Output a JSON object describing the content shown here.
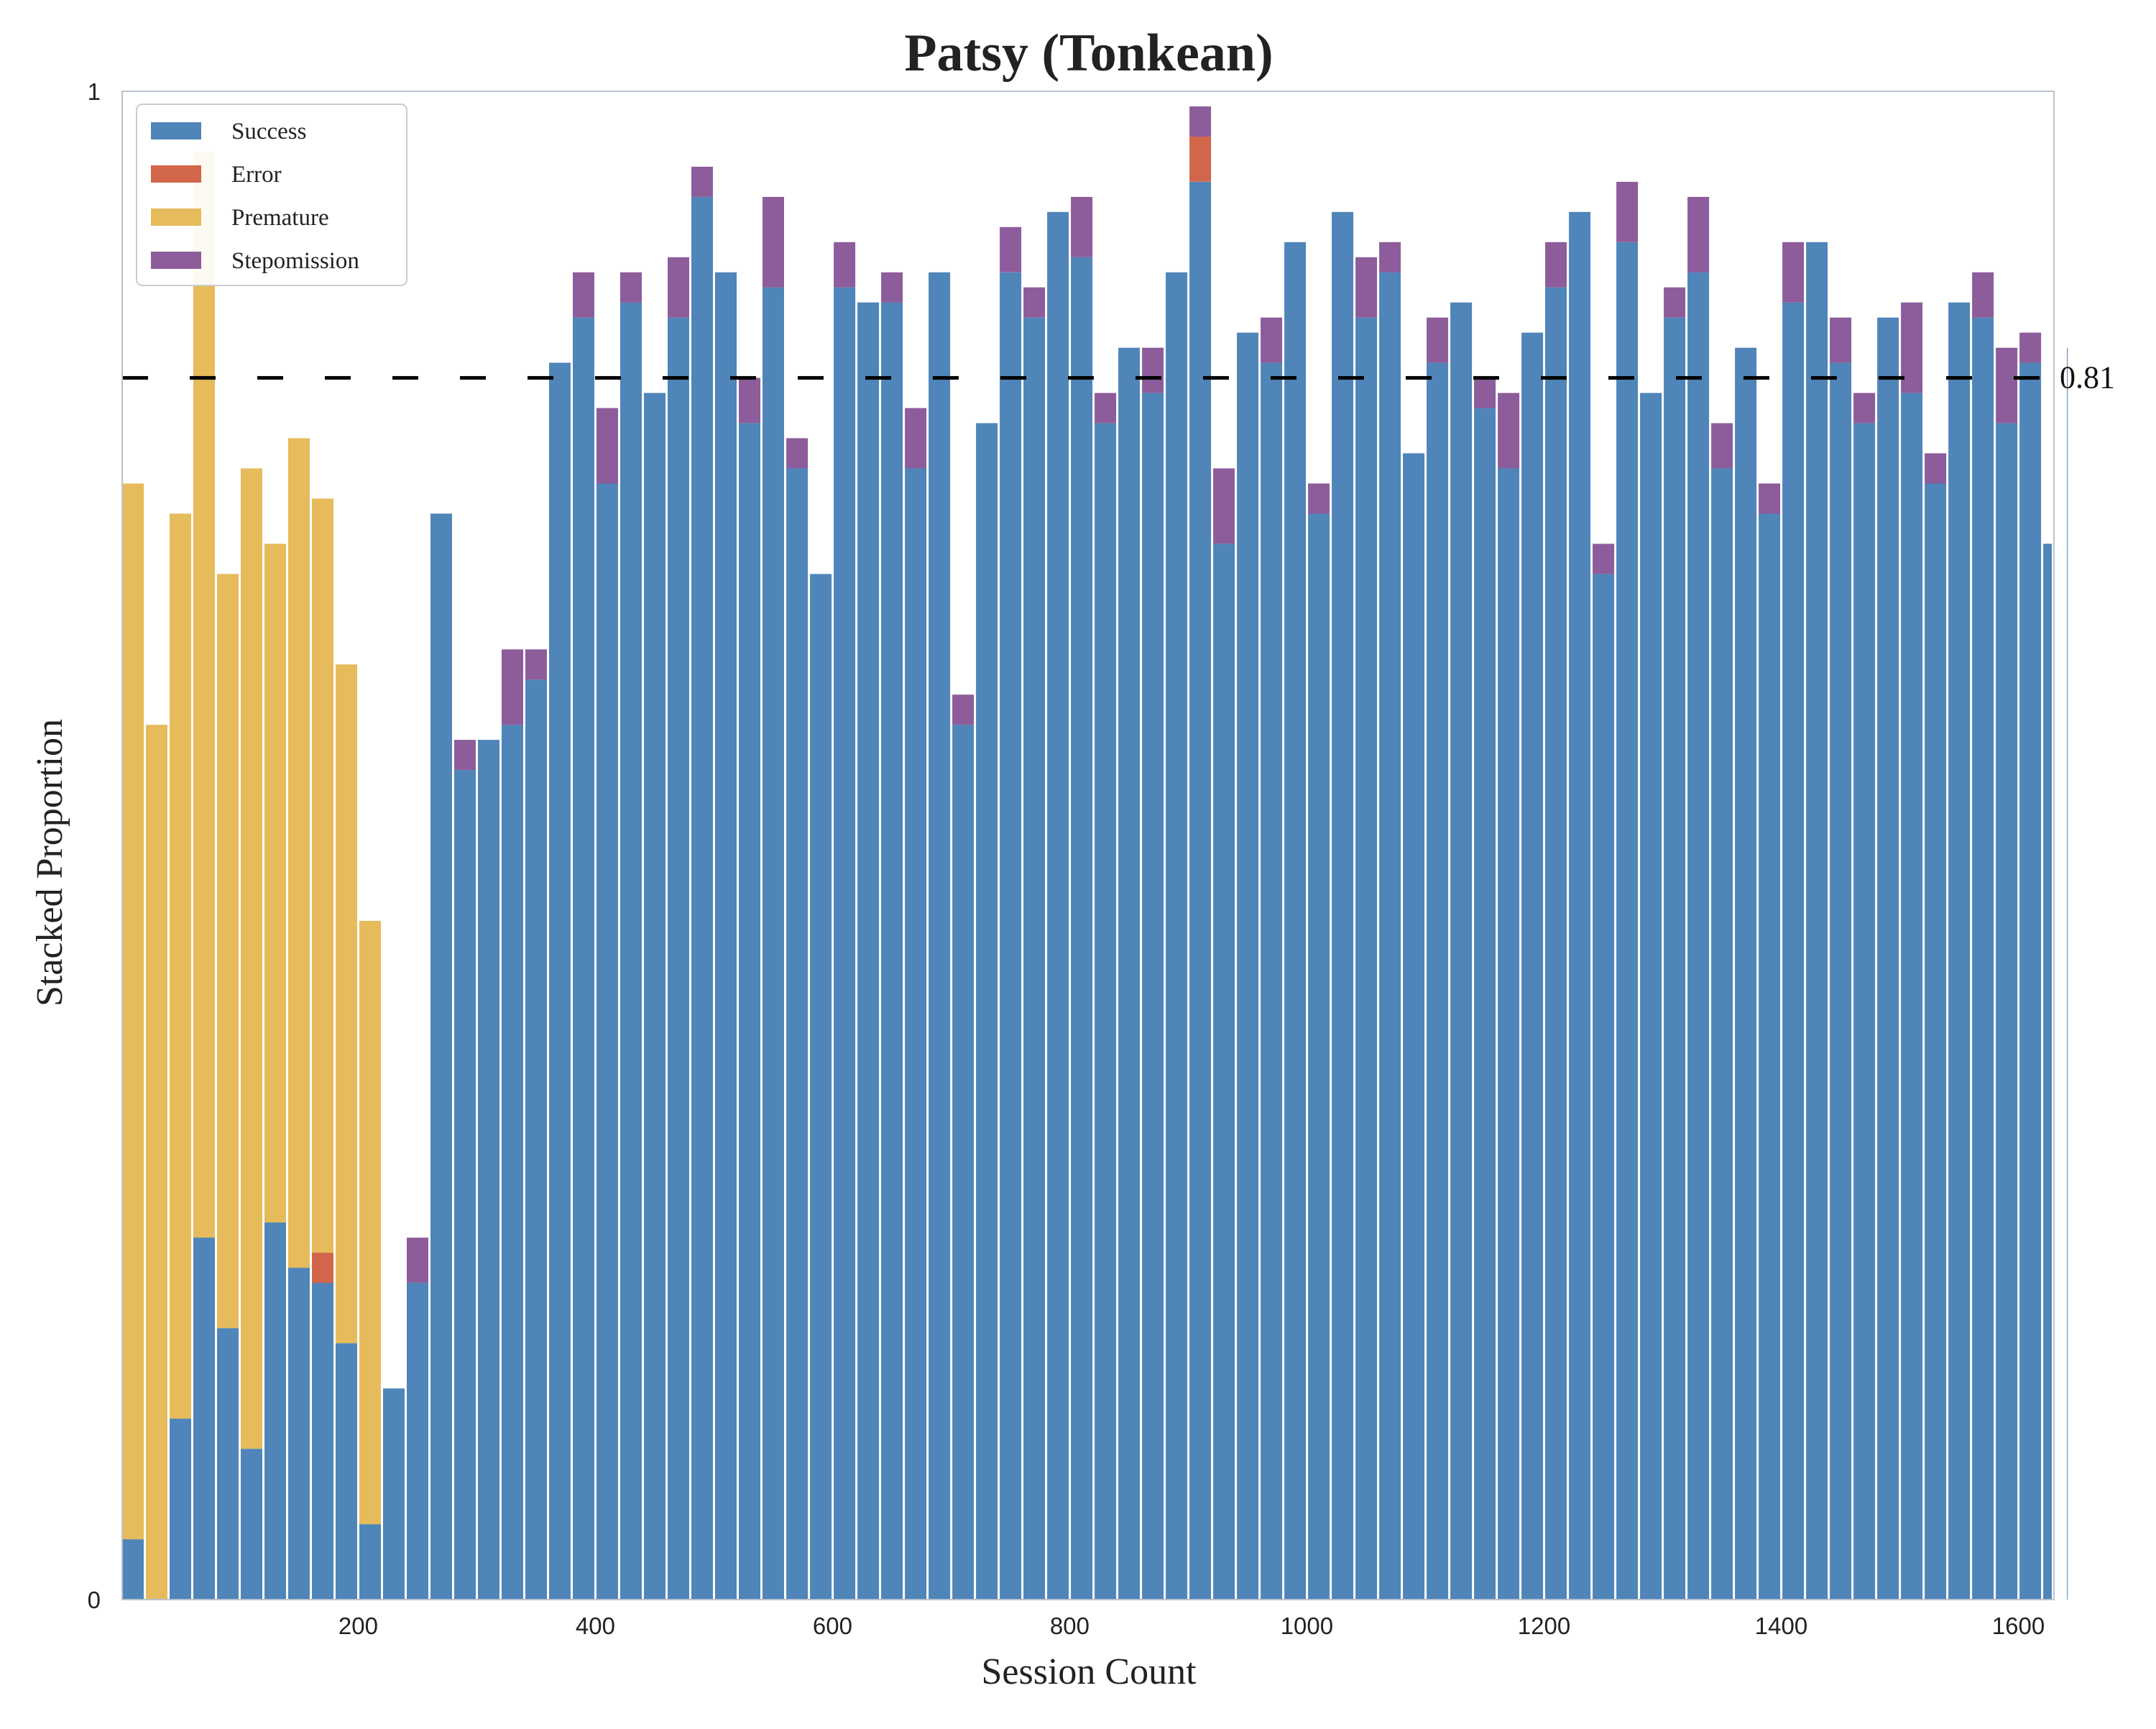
{
  "chart_data": {
    "type": "bar",
    "stacked": true,
    "title": "Patsy (Tonkean)",
    "xlabel": "Session Count",
    "ylabel": "Stacked Proportion",
    "xlim": [
      1,
      1630
    ],
    "ylim": [
      0,
      1
    ],
    "x_ticks": [
      200,
      400,
      600,
      800,
      1000,
      1200,
      1400,
      1600
    ],
    "y_ticks": [
      0,
      1
    ],
    "y_tick_labels": [
      "0",
      "1"
    ],
    "grid": false,
    "legend_position": "upper-left",
    "reference_line": {
      "value": 0.81,
      "label": "0.81",
      "style": "dashed",
      "color": "#000000"
    },
    "colors": {
      "Success": "#4f85b8",
      "Error": "#d1664a",
      "Premature": "#e6bb5c",
      "Stepomission": "#8d5c9b"
    },
    "series_order": [
      "Success",
      "Error",
      "Premature",
      "Stepomission"
    ],
    "phases": [
      {
        "x_range": [
          1,
          150
        ],
        "Success": 0.15,
        "Error": 0.01,
        "Premature": 0.55,
        "Stepomission": 0.0,
        "note_values_vary_per_session": true
      },
      {
        "x_range": [
          150,
          300
        ],
        "Success": 0.8,
        "Error": 0.0,
        "Premature": 0.0,
        "Stepomission": 0.02
      },
      {
        "x_range": [
          300,
          1630
        ],
        "Success": 0.85,
        "Error": 0.005,
        "Premature": 0.0,
        "Stepomission": 0.03
      }
    ],
    "series": [
      {
        "name": "Success",
        "values": [
          0.04,
          0.0,
          0.12,
          0.24,
          0.18,
          0.1,
          0.25,
          0.22,
          0.21,
          0.17,
          0.05,
          0.14,
          0.21,
          0.72,
          0.55,
          0.57,
          0.58,
          0.61,
          0.82,
          0.85,
          0.74,
          0.86,
          0.8,
          0.85,
          0.93,
          0.88,
          0.78,
          0.87,
          0.75,
          0.68,
          0.87,
          0.86,
          0.86,
          0.75,
          0.88,
          0.58,
          0.78,
          0.88,
          0.85,
          0.92,
          0.89,
          0.78,
          0.83,
          0.8,
          0.88,
          0.94,
          0.7,
          0.84,
          0.82,
          0.9,
          0.72,
          0.92,
          0.85,
          0.88,
          0.76,
          0.82,
          0.86,
          0.79,
          0.75,
          0.84,
          0.87,
          0.92,
          0.68,
          0.9,
          0.8,
          0.85,
          0.88,
          0.75,
          0.83,
          0.72,
          0.86,
          0.9,
          0.82,
          0.78,
          0.85,
          0.8,
          0.74,
          0.86,
          0.85,
          0.78,
          0.82,
          0.7,
          0.8
        ]
      },
      {
        "name": "Error",
        "values": [
          0.0,
          0.0,
          0.0,
          0.0,
          0.0,
          0.0,
          0.0,
          0.0,
          0.02,
          0.0,
          0.0,
          0.0,
          0.0,
          0.0,
          0.0,
          0.0,
          0.0,
          0.0,
          0.0,
          0.0,
          0.0,
          0.0,
          0.0,
          0.0,
          0.0,
          0.0,
          0.0,
          0.0,
          0.0,
          0.0,
          0.0,
          0.0,
          0.0,
          0.0,
          0.0,
          0.0,
          0.0,
          0.0,
          0.0,
          0.0,
          0.0,
          0.0,
          0.0,
          0.0,
          0.0,
          0.03,
          0.0,
          0.0,
          0.0,
          0.0,
          0.0,
          0.0,
          0.0,
          0.0,
          0.0,
          0.0,
          0.0,
          0.0,
          0.0,
          0.0,
          0.0,
          0.0,
          0.0,
          0.0,
          0.0,
          0.0,
          0.0,
          0.0,
          0.0,
          0.0,
          0.0,
          0.0,
          0.0,
          0.0,
          0.0,
          0.0,
          0.0,
          0.0,
          0.0,
          0.0,
          0.0,
          0.0,
          0.0
        ]
      },
      {
        "name": "Premature",
        "values": [
          0.7,
          0.58,
          0.6,
          0.72,
          0.5,
          0.65,
          0.45,
          0.55,
          0.5,
          0.45,
          0.4,
          0.0,
          0.0,
          0.0,
          0.0,
          0.0,
          0.0,
          0.0,
          0.0,
          0.0,
          0.0,
          0.0,
          0.0,
          0.0,
          0.0,
          0.0,
          0.0,
          0.0,
          0.0,
          0.0,
          0.0,
          0.0,
          0.0,
          0.0,
          0.0,
          0.0,
          0.0,
          0.0,
          0.0,
          0.0,
          0.0,
          0.0,
          0.0,
          0.0,
          0.0,
          0.0,
          0.0,
          0.0,
          0.0,
          0.0,
          0.0,
          0.0,
          0.0,
          0.0,
          0.0,
          0.0,
          0.0,
          0.0,
          0.0,
          0.0,
          0.0,
          0.0,
          0.0,
          0.0,
          0.0,
          0.0,
          0.0,
          0.0,
          0.0,
          0.0,
          0.0,
          0.0,
          0.0,
          0.0,
          0.0,
          0.0,
          0.0,
          0.0,
          0.0,
          0.0,
          0.0,
          0.0,
          0.0
        ]
      },
      {
        "name": "Stepomission",
        "values": [
          0.0,
          0.0,
          0.0,
          0.0,
          0.0,
          0.0,
          0.0,
          0.0,
          0.0,
          0.0,
          0.0,
          0.0,
          0.03,
          0.0,
          0.02,
          0.0,
          0.05,
          0.02,
          0.0,
          0.03,
          0.05,
          0.02,
          0.0,
          0.04,
          0.02,
          0.0,
          0.03,
          0.06,
          0.02,
          0.0,
          0.03,
          0.0,
          0.02,
          0.04,
          0.0,
          0.02,
          0.0,
          0.03,
          0.02,
          0.0,
          0.04,
          0.02,
          0.0,
          0.03,
          0.0,
          0.02,
          0.05,
          0.0,
          0.03,
          0.0,
          0.02,
          0.0,
          0.04,
          0.02,
          0.0,
          0.03,
          0.0,
          0.02,
          0.05,
          0.0,
          0.03,
          0.0,
          0.02,
          0.04,
          0.0,
          0.02,
          0.05,
          0.03,
          0.0,
          0.02,
          0.04,
          0.0,
          0.03,
          0.02,
          0.0,
          0.06,
          0.02,
          0.0,
          0.03,
          0.05,
          0.02,
          0.0,
          0.03
        ]
      }
    ],
    "series_x_step": 20,
    "series_x_start": 1
  }
}
